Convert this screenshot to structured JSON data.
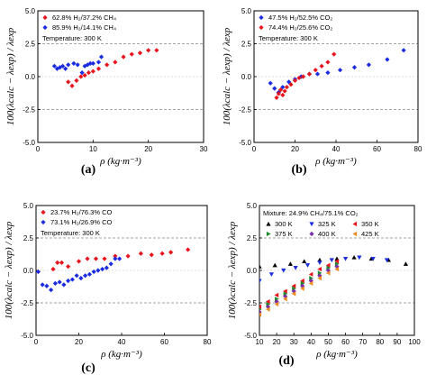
{
  "y_axis_label": "100(λcalc − λexp) / λexp",
  "x_axis_label": "ρ (kg·m⁻³)",
  "chart_data": [
    {
      "type": "scatter",
      "panel": "(a)",
      "xlim": [
        0,
        30
      ],
      "ylim": [
        -5,
        5
      ],
      "xticks": [
        0,
        10,
        20,
        30
      ],
      "yticks": [
        -5.0,
        -2.5,
        0.0,
        2.5,
        5.0
      ],
      "legend_placement": "top-left",
      "annotation": "Temperature: 300 K",
      "reference_lines": [
        2.5,
        -2.5
      ],
      "series": [
        {
          "name": "62.8% H₂/37.2% CH₄",
          "color": "#e8141c",
          "marker": "diamond",
          "x": [
            5.5,
            6.2,
            7.0,
            7.8,
            8.5,
            9.2,
            10.0,
            11.0,
            12.5,
            14.0,
            15.5,
            17.0,
            18.5,
            20.0,
            21.5
          ],
          "y": [
            -0.4,
            -0.7,
            -0.3,
            0.0,
            0.1,
            0.3,
            0.4,
            0.6,
            0.9,
            1.1,
            1.5,
            1.7,
            1.8,
            2.0,
            2.0
          ]
        },
        {
          "name": "85.9% H₂/14.1% CH₄",
          "color": "#1a2be0",
          "marker": "diamond",
          "x": [
            3.0,
            3.5,
            4.0,
            4.5,
            5.0,
            5.5,
            6.5,
            7.2,
            8.0,
            8.5,
            9.0,
            9.5,
            10.0,
            11.0,
            11.5
          ],
          "y": [
            0.8,
            0.6,
            0.7,
            0.8,
            0.6,
            0.9,
            1.0,
            0.9,
            0.3,
            0.8,
            0.9,
            1.0,
            1.0,
            1.1,
            1.5
          ]
        }
      ]
    },
    {
      "type": "scatter",
      "panel": "(b)",
      "xlim": [
        0,
        80
      ],
      "ylim": [
        -5,
        5
      ],
      "xticks": [
        0,
        20,
        40,
        60,
        80
      ],
      "yticks": [
        -5.0,
        -2.5,
        0.0,
        2.5,
        5.0
      ],
      "legend_placement": "top-left",
      "annotation": "Temperature: 300 K",
      "reference_lines": [
        2.5,
        -2.5
      ],
      "series": [
        {
          "name": "47.5% H₂/52.5% CO₂",
          "color": "#1a2be0",
          "marker": "diamond",
          "x": [
            8,
            10,
            12,
            14,
            17,
            20,
            23,
            27,
            31,
            36,
            42,
            49,
            56,
            65,
            73
          ],
          "y": [
            -0.5,
            -0.9,
            -1.2,
            -0.8,
            -0.4,
            -0.2,
            0.0,
            0.2,
            0.2,
            0.3,
            0.5,
            0.7,
            0.9,
            1.3,
            2.0
          ]
        },
        {
          "name": "74.4% H₂/25.6% CO₂",
          "color": "#e8141c",
          "marker": "diamond",
          "x": [
            11,
            12,
            13,
            14,
            15,
            16,
            18,
            20,
            22,
            24,
            27,
            30,
            33,
            36,
            39
          ],
          "y": [
            -1.6,
            -1.3,
            -1.0,
            -1.4,
            -1.1,
            -0.8,
            -0.6,
            -0.3,
            -0.1,
            0.0,
            0.2,
            0.5,
            0.8,
            1.1,
            1.7
          ]
        }
      ]
    },
    {
      "type": "scatter",
      "panel": "(c)",
      "xlim": [
        0,
        80
      ],
      "ylim": [
        -5,
        5
      ],
      "xticks": [
        0,
        20,
        40,
        60,
        80
      ],
      "yticks": [
        -5.0,
        -2.5,
        0.0,
        2.5,
        5.0
      ],
      "legend_placement": "top-left",
      "annotation": "Temperature: 300 K",
      "reference_lines": [
        2.5,
        -2.5
      ],
      "series": [
        {
          "name": "23.7% H₂/76.3% CO",
          "color": "#e8141c",
          "marker": "diamond",
          "x": [
            1,
            8,
            10,
            12,
            15,
            20,
            24,
            28,
            32,
            37,
            43,
            49,
            54,
            59,
            63,
            71
          ],
          "y": [
            -0.1,
            0.1,
            0.6,
            0.6,
            0.3,
            0.7,
            0.9,
            0.9,
            0.9,
            1.1,
            1.1,
            1.3,
            1.2,
            1.3,
            1.4,
            1.6
          ]
        },
        {
          "name": "73.1% H₂/26.9% CO",
          "color": "#1a2be0",
          "marker": "diamond",
          "x": [
            1,
            3,
            5,
            7,
            9,
            11,
            13,
            15,
            17,
            19,
            21,
            23,
            25,
            27,
            29,
            31,
            33,
            35,
            37,
            39
          ],
          "y": [
            -0.1,
            -1.1,
            -1.2,
            -1.5,
            -1.0,
            -0.9,
            -1.1,
            -0.8,
            -0.7,
            -0.4,
            -0.6,
            -0.4,
            -0.3,
            -0.1,
            0.0,
            0.1,
            0.2,
            0.5,
            0.9,
            0.9
          ]
        }
      ]
    },
    {
      "type": "scatter",
      "panel": "(d)",
      "xlim": [
        10,
        100
      ],
      "ylim": [
        -5,
        5
      ],
      "xticks": [
        10,
        20,
        30,
        40,
        50,
        60,
        70,
        80,
        90,
        100
      ],
      "yticks": [
        -5.0,
        -2.5,
        0.0,
        2.5,
        5.0
      ],
      "legend_placement": "top-left",
      "annotation": "Mixture: 24.9% CH₄/75.1% CO₂",
      "reference_lines": [
        2.5,
        -2.5
      ],
      "series": [
        {
          "name": "300 K",
          "color": "#000000",
          "marker": "triangle-up",
          "x": [
            10,
            19,
            28,
            36,
            45,
            55,
            65,
            75,
            85,
            95
          ],
          "y": [
            0.3,
            0.4,
            0.5,
            0.7,
            0.8,
            0.9,
            1.0,
            0.9,
            0.8,
            0.5
          ]
        },
        {
          "name": "325 K",
          "color": "#1a2be0",
          "marker": "triangle-down",
          "x": [
            10,
            17,
            24,
            31,
            38,
            45,
            52,
            60,
            68,
            76,
            84
          ],
          "y": [
            -0.8,
            -0.3,
            0.0,
            0.2,
            0.4,
            0.6,
            0.8,
            0.9,
            1.0,
            0.9,
            0.8
          ]
        },
        {
          "name": "350 K",
          "color": "#e8141c",
          "marker": "triangle-left",
          "x": [
            10,
            15,
            20,
            25,
            30,
            35,
            40,
            45,
            50,
            55
          ],
          "y": [
            -2.8,
            -2.4,
            -1.9,
            -1.6,
            -1.2,
            -0.8,
            -0.3,
            0.1,
            0.4,
            0.7
          ]
        },
        {
          "name": "375 K",
          "color": "#1b8a2a",
          "marker": "triangle-right",
          "x": [
            10,
            15,
            20,
            25,
            30,
            35,
            40,
            45,
            50,
            55
          ],
          "y": [
            -3.0,
            -2.6,
            -2.2,
            -1.8,
            -1.4,
            -1.0,
            -0.6,
            -0.2,
            0.2,
            0.5
          ]
        },
        {
          "name": "400 K",
          "color": "#7b2fa8",
          "marker": "diamond",
          "x": [
            10,
            15,
            20,
            25,
            30,
            35,
            40,
            45,
            50,
            55
          ],
          "y": [
            -3.2,
            -2.8,
            -2.4,
            -2.0,
            -1.6,
            -1.2,
            -0.8,
            -0.4,
            0.0,
            0.3
          ]
        },
        {
          "name": "425 K",
          "color": "#f08a1c",
          "marker": "triangle-left",
          "x": [
            10,
            15,
            20,
            25,
            30,
            35,
            40,
            45,
            50,
            55
          ],
          "y": [
            -3.4,
            -3.0,
            -2.6,
            -2.2,
            -1.8,
            -1.4,
            -1.0,
            -0.6,
            -0.2,
            0.1
          ]
        }
      ]
    }
  ]
}
